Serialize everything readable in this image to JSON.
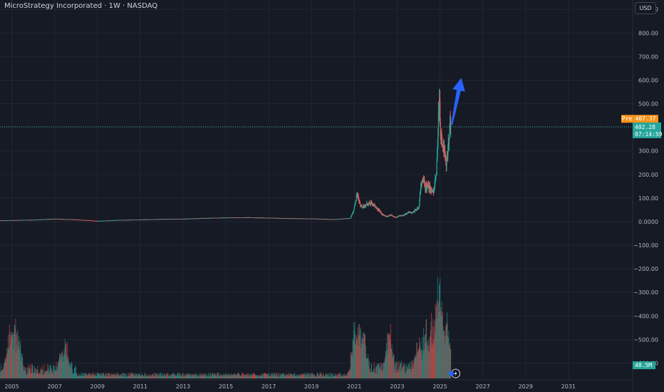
{
  "header": {
    "title": "MicroStrategy Incorporated · 1W · NASDAQ",
    "currency_button": "USD"
  },
  "colors": {
    "background": "#161a25",
    "up": "#26a69a",
    "down": "#ef5350",
    "arrow": "#2962ff",
    "pre_tag": "#f7931a",
    "price_tag": "#26a69a",
    "grid": "#222632",
    "axis_text": "#b2b5be"
  },
  "tags": {
    "pre_label": "Pre",
    "pre_value": "407.37",
    "price_value": "402.28",
    "countdown": "07:14:59",
    "volume_value": "48.5M"
  },
  "chart_data": {
    "type": "candlestick",
    "series_name": "MicroStrategy Incorporated",
    "interval": "1W",
    "exchange": "NASDAQ",
    "y_ticks": [
      "900.00",
      "800.00",
      "700.00",
      "600.00",
      "500.00",
      "400.00",
      "300.00",
      "200.00",
      "100.00",
      "0.0000",
      "−100.00",
      "−200.00",
      "−300.00",
      "−400.00",
      "−500.00",
      "−600.00"
    ],
    "y_tick_values": [
      900,
      800,
      700,
      600,
      500,
      400,
      300,
      200,
      100,
      0,
      -100,
      -200,
      -300,
      -400,
      -500,
      -600
    ],
    "x_ticks": [
      "2005",
      "2007",
      "2009",
      "2011",
      "2013",
      "2015",
      "2017",
      "2019",
      "2021",
      "2023",
      "2025",
      "2027",
      "2029",
      "2031"
    ],
    "x_tick_years": [
      2005,
      2007,
      2009,
      2011,
      2013,
      2015,
      2017,
      2019,
      2021,
      2023,
      2025,
      2027,
      2029,
      2031
    ],
    "x_range": [
      2004.45,
      2034.0
    ],
    "y_range": [
      -668,
      940
    ],
    "current_price": 402.28,
    "pre_market_price": 407.37,
    "last_volume": "48.5M",
    "price_path": [
      [
        2004.45,
        5
      ],
      [
        2006,
        8
      ],
      [
        2007,
        12
      ],
      [
        2008,
        9
      ],
      [
        2009,
        3
      ],
      [
        2010,
        7
      ],
      [
        2011,
        9
      ],
      [
        2012,
        11
      ],
      [
        2013,
        12
      ],
      [
        2014,
        15
      ],
      [
        2015,
        17
      ],
      [
        2016,
        18
      ],
      [
        2017,
        16
      ],
      [
        2018,
        14
      ],
      [
        2019,
        13
      ],
      [
        2020,
        10
      ],
      [
        2020.8,
        15
      ],
      [
        2020.9,
        35
      ],
      [
        2021.0,
        70
      ],
      [
        2021.12,
        120
      ],
      [
        2021.25,
        70
      ],
      [
        2021.4,
        65
      ],
      [
        2021.6,
        75
      ],
      [
        2021.75,
        80
      ],
      [
        2021.9,
        68
      ],
      [
        2022.1,
        50
      ],
      [
        2022.3,
        30
      ],
      [
        2022.5,
        22
      ],
      [
        2022.7,
        28
      ],
      [
        2022.9,
        18
      ],
      [
        2023.1,
        25
      ],
      [
        2023.3,
        28
      ],
      [
        2023.5,
        40
      ],
      [
        2023.7,
        35
      ],
      [
        2023.85,
        50
      ],
      [
        2024.0,
        60
      ],
      [
        2024.1,
        160
      ],
      [
        2024.2,
        180
      ],
      [
        2024.3,
        145
      ],
      [
        2024.4,
        150
      ],
      [
        2024.5,
        140
      ],
      [
        2024.6,
        130
      ],
      [
        2024.7,
        135
      ],
      [
        2024.8,
        200
      ],
      [
        2024.85,
        270
      ],
      [
        2024.9,
        400
      ],
      [
        2024.95,
        540
      ],
      [
        2025.0,
        370
      ],
      [
        2025.05,
        340
      ],
      [
        2025.1,
        300
      ],
      [
        2025.15,
        330
      ],
      [
        2025.25,
        240
      ],
      [
        2025.35,
        310
      ],
      [
        2025.4,
        360
      ],
      [
        2025.45,
        400
      ],
      [
        2025.5,
        402
      ]
    ],
    "volume_spikes": [
      [
        2004.9,
        0.42
      ],
      [
        2005.1,
        0.5
      ],
      [
        2005.3,
        0.38
      ],
      [
        2007.3,
        0.15
      ],
      [
        2007.5,
        0.28
      ],
      [
        2021.0,
        0.4
      ],
      [
        2021.2,
        0.45
      ],
      [
        2021.4,
        0.38
      ],
      [
        2022.6,
        0.42
      ],
      [
        2024.0,
        0.33
      ],
      [
        2024.3,
        0.48
      ],
      [
        2024.6,
        0.5
      ],
      [
        2024.85,
        0.85
      ],
      [
        2024.95,
        1.0
      ],
      [
        2025.1,
        0.6
      ],
      [
        2025.3,
        0.55
      ]
    ],
    "annotation": {
      "type": "arrow",
      "direction": "up-right",
      "from": [
        2025.55,
        410
      ],
      "to": [
        2026.0,
        610
      ]
    }
  }
}
